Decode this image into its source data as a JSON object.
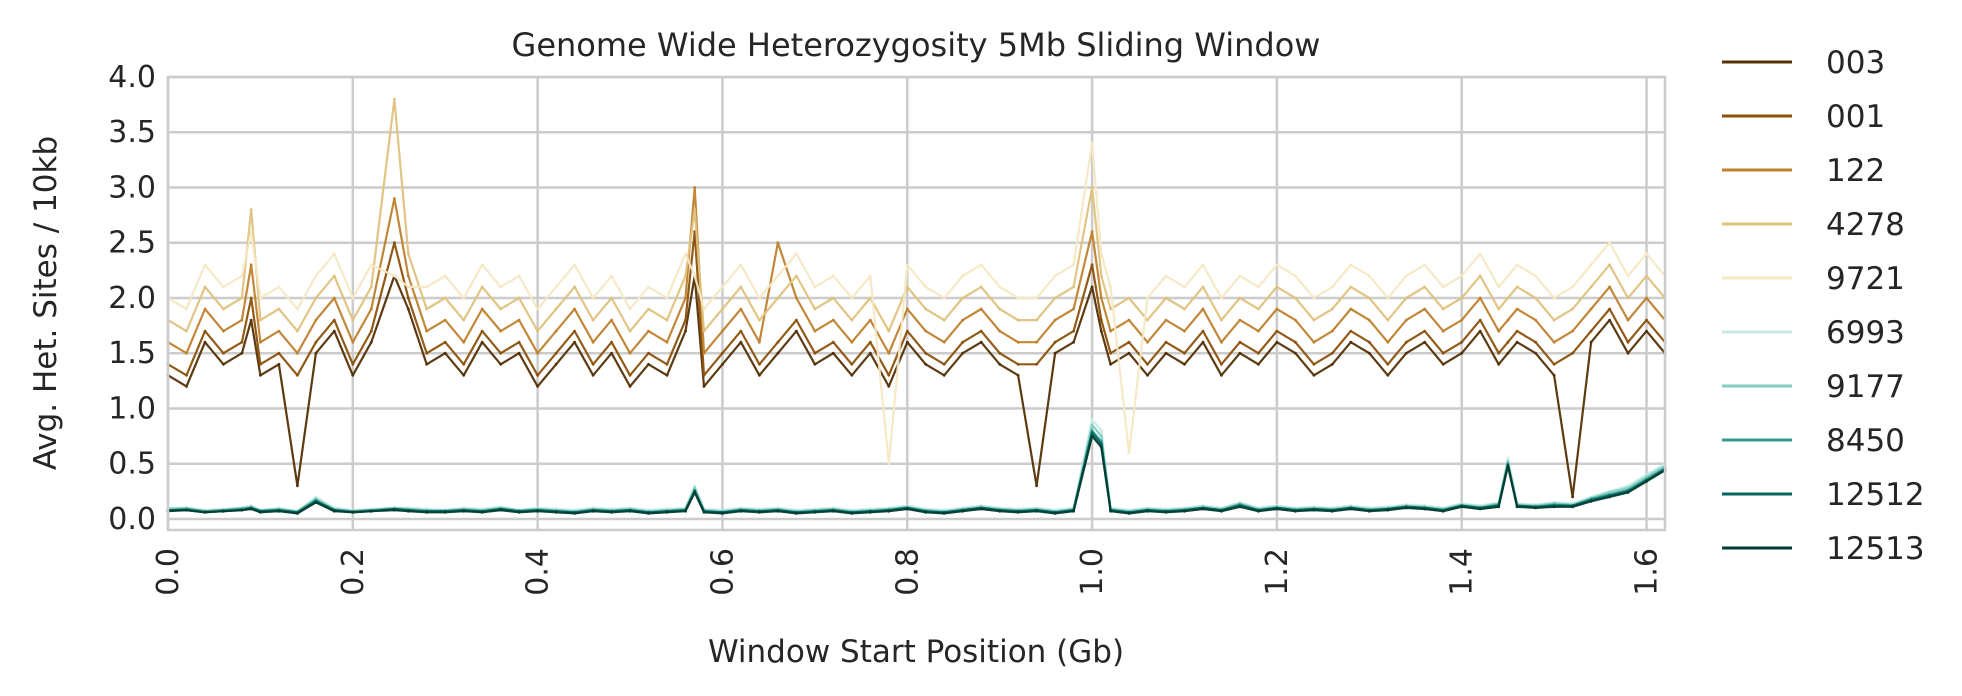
{
  "chart_data": {
    "type": "line",
    "title": "Genome Wide Heterozygosity 5Mb Sliding Window",
    "xlabel": "Window Start Position (Gb)",
    "ylabel": "Avg. Het. Sites / 10kb",
    "xlim": [
      0.0,
      1.62
    ],
    "ylim": [
      -0.1,
      4.0
    ],
    "xticks": [
      0.0,
      0.2,
      0.4,
      0.6,
      0.8,
      1.0,
      1.2,
      1.4,
      1.6
    ],
    "xtick_labels": [
      "0.0",
      "0.2",
      "0.4",
      "0.6",
      "0.8",
      "1.0",
      "1.2",
      "1.4",
      "1.6"
    ],
    "yticks": [
      0.0,
      0.5,
      1.0,
      1.5,
      2.0,
      2.5,
      3.0,
      3.5,
      4.0
    ],
    "ytick_labels": [
      "0.0",
      "0.5",
      "1.0",
      "1.5",
      "2.0",
      "2.5",
      "3.0",
      "3.5",
      "4.0"
    ],
    "grid": true,
    "legend_position": "outside-right",
    "x": [
      0.0,
      0.02,
      0.04,
      0.06,
      0.08,
      0.09,
      0.1,
      0.12,
      0.14,
      0.16,
      0.18,
      0.2,
      0.22,
      0.245,
      0.26,
      0.28,
      0.3,
      0.32,
      0.34,
      0.36,
      0.38,
      0.4,
      0.42,
      0.44,
      0.46,
      0.48,
      0.5,
      0.52,
      0.54,
      0.56,
      0.57,
      0.58,
      0.6,
      0.62,
      0.64,
      0.66,
      0.68,
      0.7,
      0.72,
      0.74,
      0.76,
      0.78,
      0.8,
      0.82,
      0.84,
      0.86,
      0.88,
      0.9,
      0.92,
      0.94,
      0.96,
      0.98,
      1.0,
      1.01,
      1.02,
      1.04,
      1.06,
      1.08,
      1.1,
      1.12,
      1.14,
      1.16,
      1.18,
      1.2,
      1.22,
      1.24,
      1.26,
      1.28,
      1.3,
      1.32,
      1.34,
      1.36,
      1.38,
      1.4,
      1.42,
      1.44,
      1.45,
      1.46,
      1.48,
      1.5,
      1.52,
      1.54,
      1.56,
      1.58,
      1.6,
      1.62
    ],
    "series": [
      {
        "name": "003",
        "color": "#543005",
        "values": [
          1.3,
          1.2,
          1.6,
          1.4,
          1.5,
          1.8,
          1.3,
          1.4,
          0.3,
          1.5,
          1.7,
          1.3,
          1.6,
          2.2,
          1.9,
          1.4,
          1.5,
          1.3,
          1.6,
          1.4,
          1.5,
          1.2,
          1.4,
          1.6,
          1.3,
          1.5,
          1.2,
          1.4,
          1.3,
          1.7,
          2.2,
          1.2,
          1.4,
          1.6,
          1.3,
          1.5,
          1.7,
          1.4,
          1.5,
          1.3,
          1.5,
          1.2,
          1.6,
          1.4,
          1.3,
          1.5,
          1.6,
          1.4,
          1.3,
          0.3,
          1.5,
          1.6,
          2.1,
          1.7,
          1.4,
          1.5,
          1.3,
          1.5,
          1.4,
          1.6,
          1.3,
          1.5,
          1.4,
          1.6,
          1.5,
          1.3,
          1.4,
          1.6,
          1.5,
          1.3,
          1.5,
          1.6,
          1.4,
          1.5,
          1.7,
          1.4,
          1.5,
          1.6,
          1.5,
          1.3,
          0.2,
          1.6,
          1.8,
          1.5,
          1.7,
          1.5
        ]
      },
      {
        "name": "001",
        "color": "#8c510a",
        "values": [
          1.4,
          1.3,
          1.7,
          1.5,
          1.6,
          2.0,
          1.4,
          1.5,
          1.3,
          1.6,
          1.8,
          1.4,
          1.7,
          2.5,
          2.0,
          1.5,
          1.6,
          1.4,
          1.7,
          1.5,
          1.6,
          1.3,
          1.5,
          1.7,
          1.4,
          1.6,
          1.3,
          1.5,
          1.4,
          1.8,
          2.6,
          1.3,
          1.5,
          1.7,
          1.4,
          1.6,
          1.8,
          1.5,
          1.6,
          1.4,
          1.6,
          1.3,
          1.7,
          1.5,
          1.4,
          1.6,
          1.7,
          1.5,
          1.4,
          1.4,
          1.6,
          1.7,
          2.3,
          1.8,
          1.5,
          1.6,
          1.4,
          1.6,
          1.5,
          1.7,
          1.4,
          1.6,
          1.5,
          1.7,
          1.6,
          1.4,
          1.5,
          1.7,
          1.6,
          1.4,
          1.6,
          1.7,
          1.5,
          1.6,
          1.8,
          1.5,
          1.6,
          1.7,
          1.6,
          1.4,
          1.5,
          1.7,
          1.9,
          1.6,
          1.8,
          1.6
        ]
      },
      {
        "name": "122",
        "color": "#bf812d",
        "values": [
          1.6,
          1.5,
          1.9,
          1.7,
          1.8,
          2.3,
          1.6,
          1.7,
          1.5,
          1.8,
          2.0,
          1.6,
          1.9,
          2.9,
          2.2,
          1.7,
          1.8,
          1.6,
          1.9,
          1.7,
          1.8,
          1.5,
          1.7,
          1.9,
          1.6,
          1.8,
          1.5,
          1.7,
          1.6,
          2.0,
          3.0,
          1.5,
          1.7,
          1.9,
          1.6,
          2.5,
          2.0,
          1.7,
          1.8,
          1.6,
          1.8,
          1.5,
          1.9,
          1.7,
          1.6,
          1.8,
          1.9,
          1.7,
          1.6,
          1.6,
          1.8,
          1.9,
          2.6,
          2.0,
          1.7,
          1.8,
          1.6,
          1.8,
          1.7,
          1.9,
          1.6,
          1.8,
          1.7,
          1.9,
          1.8,
          1.6,
          1.7,
          1.9,
          1.8,
          1.6,
          1.8,
          1.9,
          1.7,
          1.8,
          2.0,
          1.7,
          1.8,
          1.9,
          1.8,
          1.6,
          1.7,
          1.9,
          2.1,
          1.8,
          2.0,
          1.8
        ]
      },
      {
        "name": "4278",
        "color": "#dfc27d",
        "values": [
          1.8,
          1.7,
          2.1,
          1.9,
          2.0,
          2.8,
          1.8,
          1.9,
          1.7,
          2.0,
          2.2,
          1.8,
          2.1,
          3.8,
          2.4,
          1.9,
          2.0,
          1.8,
          2.1,
          1.9,
          2.0,
          1.7,
          1.9,
          2.1,
          1.8,
          2.0,
          1.7,
          1.9,
          1.8,
          2.2,
          2.8,
          1.7,
          1.9,
          2.1,
          1.8,
          2.0,
          2.2,
          1.9,
          2.0,
          1.8,
          2.0,
          1.7,
          2.1,
          1.9,
          1.8,
          2.0,
          2.1,
          1.9,
          1.8,
          1.8,
          2.0,
          2.1,
          3.0,
          2.2,
          1.9,
          2.0,
          1.8,
          2.0,
          1.9,
          2.1,
          1.8,
          2.0,
          1.9,
          2.1,
          2.0,
          1.8,
          1.9,
          2.1,
          2.0,
          1.8,
          2.0,
          2.1,
          1.9,
          2.0,
          2.2,
          1.9,
          2.0,
          2.1,
          2.0,
          1.8,
          1.9,
          2.1,
          2.3,
          2.0,
          2.2,
          2.0
        ]
      },
      {
        "name": "9721",
        "color": "#f6e8c3",
        "values": [
          2.0,
          1.9,
          2.3,
          2.1,
          2.2,
          2.6,
          2.0,
          2.1,
          1.9,
          2.2,
          2.4,
          2.0,
          2.3,
          2.2,
          2.1,
          2.1,
          2.2,
          2.0,
          2.3,
          2.1,
          2.2,
          1.9,
          2.1,
          2.3,
          2.0,
          2.2,
          1.9,
          2.1,
          2.0,
          2.4,
          2.2,
          1.9,
          2.1,
          2.3,
          2.0,
          2.2,
          2.4,
          2.1,
          2.2,
          2.0,
          2.2,
          0.5,
          2.3,
          2.1,
          2.0,
          2.2,
          2.3,
          2.1,
          2.0,
          2.0,
          2.2,
          2.3,
          3.4,
          2.4,
          2.1,
          0.6,
          2.0,
          2.2,
          2.1,
          2.3,
          2.0,
          2.2,
          2.1,
          2.3,
          2.2,
          2.0,
          2.1,
          2.3,
          2.2,
          2.0,
          2.2,
          2.3,
          2.1,
          2.2,
          2.4,
          2.1,
          2.2,
          2.3,
          2.2,
          2.0,
          2.1,
          2.3,
          2.5,
          2.2,
          2.4,
          2.2
        ]
      },
      {
        "name": "6993",
        "color": "#c7eae5",
        "values": [
          0.1,
          0.1,
          0.08,
          0.09,
          0.1,
          0.12,
          0.08,
          0.1,
          0.07,
          0.2,
          0.1,
          0.08,
          0.09,
          0.1,
          0.1,
          0.09,
          0.08,
          0.1,
          0.09,
          0.11,
          0.08,
          0.1,
          0.09,
          0.08,
          0.1,
          0.09,
          0.1,
          0.08,
          0.09,
          0.1,
          0.3,
          0.09,
          0.08,
          0.1,
          0.09,
          0.1,
          0.08,
          0.09,
          0.1,
          0.08,
          0.09,
          0.1,
          0.12,
          0.09,
          0.08,
          0.1,
          0.12,
          0.1,
          0.09,
          0.1,
          0.08,
          0.1,
          0.9,
          0.8,
          0.1,
          0.08,
          0.1,
          0.09,
          0.1,
          0.12,
          0.1,
          0.15,
          0.1,
          0.12,
          0.1,
          0.11,
          0.1,
          0.12,
          0.1,
          0.11,
          0.13,
          0.12,
          0.1,
          0.14,
          0.12,
          0.15,
          0.55,
          0.14,
          0.13,
          0.15,
          0.14,
          0.2,
          0.25,
          0.3,
          0.4,
          0.5
        ]
      },
      {
        "name": "9177",
        "color": "#80cdc1",
        "values": [
          0.09,
          0.1,
          0.07,
          0.08,
          0.1,
          0.11,
          0.08,
          0.09,
          0.07,
          0.18,
          0.09,
          0.07,
          0.08,
          0.1,
          0.09,
          0.08,
          0.08,
          0.09,
          0.08,
          0.1,
          0.08,
          0.09,
          0.08,
          0.07,
          0.09,
          0.08,
          0.09,
          0.07,
          0.08,
          0.09,
          0.28,
          0.08,
          0.07,
          0.09,
          0.08,
          0.09,
          0.07,
          0.08,
          0.09,
          0.07,
          0.08,
          0.09,
          0.11,
          0.08,
          0.07,
          0.09,
          0.11,
          0.09,
          0.08,
          0.09,
          0.07,
          0.09,
          0.85,
          0.75,
          0.09,
          0.07,
          0.09,
          0.08,
          0.09,
          0.11,
          0.09,
          0.14,
          0.09,
          0.11,
          0.09,
          0.1,
          0.09,
          0.11,
          0.09,
          0.1,
          0.12,
          0.11,
          0.09,
          0.13,
          0.11,
          0.14,
          0.52,
          0.13,
          0.12,
          0.14,
          0.13,
          0.19,
          0.24,
          0.28,
          0.38,
          0.48
        ]
      },
      {
        "name": "8450",
        "color": "#35978f",
        "values": [
          0.08,
          0.09,
          0.07,
          0.08,
          0.09,
          0.1,
          0.07,
          0.08,
          0.06,
          0.17,
          0.08,
          0.07,
          0.08,
          0.09,
          0.08,
          0.07,
          0.07,
          0.08,
          0.07,
          0.09,
          0.07,
          0.08,
          0.07,
          0.06,
          0.08,
          0.07,
          0.08,
          0.06,
          0.07,
          0.08,
          0.26,
          0.07,
          0.06,
          0.08,
          0.07,
          0.08,
          0.06,
          0.07,
          0.08,
          0.06,
          0.07,
          0.08,
          0.1,
          0.07,
          0.06,
          0.08,
          0.1,
          0.08,
          0.07,
          0.08,
          0.06,
          0.08,
          0.8,
          0.7,
          0.08,
          0.06,
          0.08,
          0.07,
          0.08,
          0.1,
          0.08,
          0.13,
          0.08,
          0.1,
          0.08,
          0.09,
          0.08,
          0.1,
          0.08,
          0.09,
          0.11,
          0.1,
          0.08,
          0.12,
          0.1,
          0.13,
          0.5,
          0.12,
          0.11,
          0.13,
          0.12,
          0.18,
          0.22,
          0.26,
          0.36,
          0.46
        ]
      },
      {
        "name": "12512",
        "color": "#01665e",
        "values": [
          0.08,
          0.08,
          0.06,
          0.07,
          0.08,
          0.1,
          0.07,
          0.08,
          0.06,
          0.16,
          0.08,
          0.06,
          0.07,
          0.09,
          0.08,
          0.07,
          0.07,
          0.08,
          0.07,
          0.09,
          0.07,
          0.08,
          0.07,
          0.06,
          0.08,
          0.07,
          0.08,
          0.06,
          0.07,
          0.08,
          0.25,
          0.07,
          0.06,
          0.08,
          0.07,
          0.08,
          0.06,
          0.07,
          0.08,
          0.06,
          0.07,
          0.08,
          0.1,
          0.07,
          0.06,
          0.08,
          0.1,
          0.08,
          0.07,
          0.08,
          0.06,
          0.08,
          0.78,
          0.68,
          0.08,
          0.06,
          0.08,
          0.07,
          0.08,
          0.1,
          0.08,
          0.12,
          0.08,
          0.1,
          0.08,
          0.09,
          0.08,
          0.1,
          0.08,
          0.09,
          0.11,
          0.1,
          0.08,
          0.12,
          0.1,
          0.12,
          0.49,
          0.12,
          0.11,
          0.12,
          0.12,
          0.17,
          0.21,
          0.25,
          0.35,
          0.45
        ]
      },
      {
        "name": "12513",
        "color": "#003c30",
        "values": [
          0.07,
          0.08,
          0.06,
          0.07,
          0.08,
          0.09,
          0.06,
          0.07,
          0.05,
          0.15,
          0.07,
          0.06,
          0.07,
          0.08,
          0.07,
          0.06,
          0.06,
          0.07,
          0.06,
          0.08,
          0.06,
          0.07,
          0.06,
          0.05,
          0.07,
          0.06,
          0.07,
          0.05,
          0.06,
          0.07,
          0.24,
          0.06,
          0.05,
          0.07,
          0.06,
          0.07,
          0.05,
          0.06,
          0.07,
          0.05,
          0.06,
          0.07,
          0.09,
          0.06,
          0.05,
          0.07,
          0.09,
          0.07,
          0.06,
          0.07,
          0.05,
          0.07,
          0.75,
          0.65,
          0.07,
          0.05,
          0.07,
          0.06,
          0.07,
          0.09,
          0.07,
          0.11,
          0.07,
          0.09,
          0.07,
          0.08,
          0.07,
          0.09,
          0.07,
          0.08,
          0.1,
          0.09,
          0.07,
          0.11,
          0.09,
          0.11,
          0.48,
          0.11,
          0.1,
          0.11,
          0.11,
          0.16,
          0.2,
          0.24,
          0.34,
          0.44
        ]
      }
    ]
  }
}
